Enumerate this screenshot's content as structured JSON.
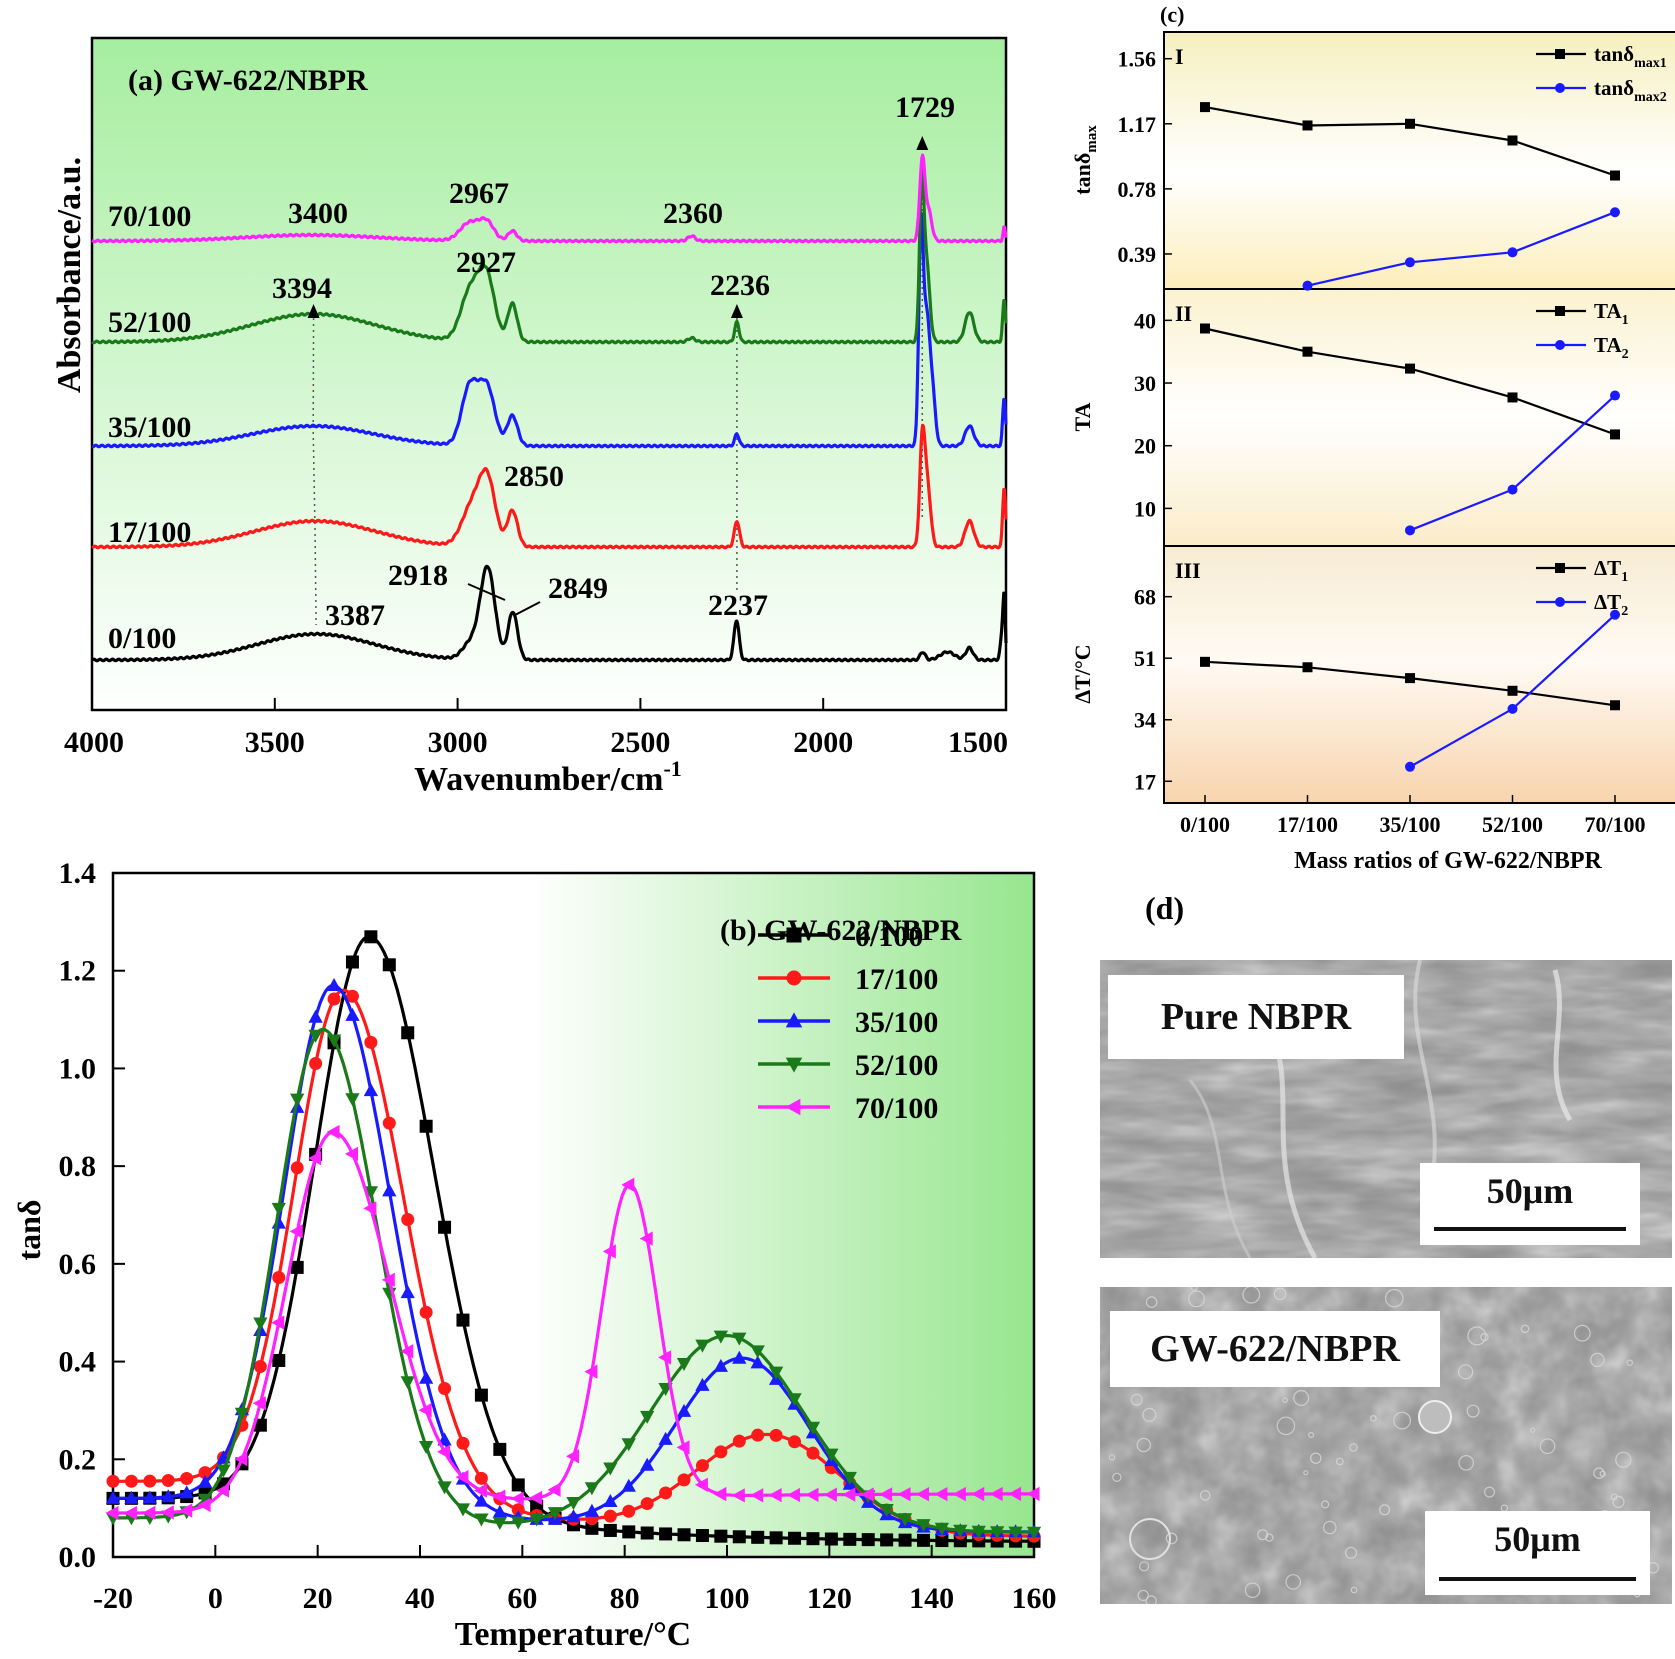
{
  "chart_data": [
    {
      "id": "a",
      "type": "line",
      "title": "(a) GW-622/NBPR",
      "xlabel": "Wavenumber/cm",
      "xlabel_sup": "-1",
      "ylabel": "Absorbance/a.u.",
      "xlim": [
        4000,
        1500
      ],
      "x_ticks": [
        "4000",
        "3500",
        "3000",
        "2500",
        "2000",
        "1500"
      ],
      "series": [
        {
          "name": "0/100",
          "color": "#000000",
          "offset": 0
        },
        {
          "name": "17/100",
          "color": "#ff1a1a",
          "offset": 1
        },
        {
          "name": "35/100",
          "color": "#1a1aff",
          "offset": 2
        },
        {
          "name": "52/100",
          "color": "#1a7a1a",
          "offset": 3
        },
        {
          "name": "70/100",
          "color": "#ff22ff",
          "offset": 4
        }
      ],
      "annotations": [
        "3400",
        "2967",
        "2360",
        "1729",
        "3394",
        "2927",
        "2236",
        "2850",
        "2918",
        "2849",
        "3387",
        "2237"
      ]
    },
    {
      "id": "b",
      "type": "line",
      "title": "(b) GW-622/NBPR",
      "xlabel": "Temperature/°C",
      "ylabel": "tanδ",
      "xlim": [
        -20,
        160
      ],
      "ylim": [
        0.0,
        1.4
      ],
      "x_ticks": [
        "-20",
        "0",
        "20",
        "40",
        "60",
        "80",
        "100",
        "120",
        "140",
        "160"
      ],
      "y_ticks": [
        "0.0",
        "0.2",
        "0.4",
        "0.6",
        "0.8",
        "1.0",
        "1.2",
        "1.4"
      ],
      "legend": "top-right",
      "series": [
        {
          "name": "0/100",
          "color": "#000000",
          "marker": "square",
          "base": 0.12,
          "tail": 0.03,
          "p1": [
            30,
            1.27,
            10.5,
            12.5
          ],
          "p2": null
        },
        {
          "name": "17/100",
          "color": "#ff1a1a",
          "marker": "circle",
          "base": 0.155,
          "tail": 0.04,
          "p1": [
            25,
            1.16,
            9.5,
            11.5
          ],
          "p2": [
            108,
            0.2,
            14
          ]
        },
        {
          "name": "35/100",
          "color": "#1a1aff",
          "marker": "triangle-up",
          "base": 0.12,
          "tail": 0.05,
          "p1": [
            23,
            1.17,
            9.5,
            11
          ],
          "p2": [
            103,
            0.35,
            13
          ]
        },
        {
          "name": "52/100",
          "color": "#1a7a1a",
          "marker": "triangle-down",
          "base": 0.08,
          "tail": 0.05,
          "p1": [
            21,
            1.08,
            9,
            10.5
          ],
          "p2": [
            100,
            0.4,
            15
          ]
        },
        {
          "name": "70/100",
          "color": "#ff22ff",
          "marker": "triangle-left",
          "base": 0.09,
          "tail": 0.13,
          "p1": [
            23,
            0.87,
            9,
            11
          ],
          "p2": [
            81,
            0.64,
            5.5
          ]
        }
      ]
    },
    {
      "id": "c",
      "type": "line",
      "title": "(c)",
      "xlabel": "Mass ratios of GW-622/NBPR",
      "categories": [
        "0/100",
        "17/100",
        "35/100",
        "52/100",
        "70/100"
      ],
      "panels": [
        {
          "label": "I",
          "ylabel": "tanδ",
          "ylabel_sub": "max",
          "ylim": [
            0.18,
            1.72
          ],
          "y_ticks": [
            "0.39",
            "0.78",
            "1.17",
            "1.56"
          ],
          "series": [
            {
              "name": "tanδ",
              "name_sub": "max1",
              "color": "#000000",
              "marker": "square",
              "values": [
                1.27,
                1.16,
                1.17,
                1.07,
                0.86
              ]
            },
            {
              "name": "tanδ",
              "name_sub": "max2",
              "color": "#1a1aff",
              "marker": "circle",
              "values": [
                null,
                0.2,
                0.34,
                0.4,
                0.64
              ]
            }
          ]
        },
        {
          "label": "II",
          "ylabel": "TA",
          "ylabel_sub": "",
          "ylim": [
            4,
            45
          ],
          "y_ticks": [
            "10",
            "20",
            "30",
            "40"
          ],
          "series": [
            {
              "name": "TA",
              "name_sub": "1",
              "color": "#000000",
              "marker": "square",
              "values": [
                38.7,
                35,
                32.3,
                27.7,
                21.8
              ]
            },
            {
              "name": "TA",
              "name_sub": "2",
              "color": "#1a1aff",
              "marker": "circle",
              "values": [
                null,
                null,
                6.5,
                13,
                28
              ]
            }
          ]
        },
        {
          "label": "III",
          "ylabel": "ΔT/°C",
          "ylabel_sub": "",
          "ylim": [
            11,
            82
          ],
          "y_ticks": [
            "17",
            "34",
            "51",
            "68"
          ],
          "series": [
            {
              "name": "ΔT",
              "name_sub": "1",
              "color": "#000000",
              "marker": "square",
              "values": [
                50,
                48.5,
                45.5,
                42,
                38
              ]
            },
            {
              "name": "ΔT",
              "name_sub": "2",
              "color": "#1a1aff",
              "marker": "circle",
              "values": [
                null,
                null,
                21,
                37,
                63
              ]
            }
          ]
        }
      ]
    }
  ],
  "panel_d": {
    "label": "(d)",
    "images": [
      {
        "caption": "Pure NBPR",
        "scale": "50μm"
      },
      {
        "caption": "GW-622/NBPR",
        "scale": "50μm"
      }
    ]
  }
}
